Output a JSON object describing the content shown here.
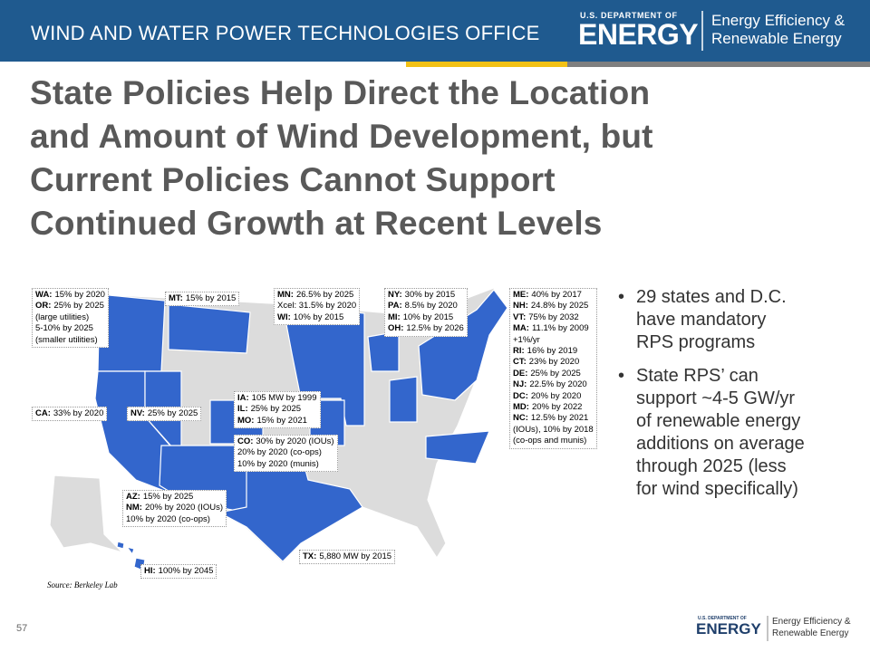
{
  "header": {
    "office": "WIND AND WATER POWER TECHNOLOGIES OFFICE",
    "logo": {
      "dept": "U.S. DEPARTMENT OF",
      "energy": "ENERGY",
      "line1": "Energy Efficiency &",
      "line2": "Renewable Energy"
    }
  },
  "title": [
    "State Policies Help Direct the Location",
    "and Amount of Wind Development, but",
    "Current Policies Cannot Support",
    "Continued Growth at Recent Levels"
  ],
  "map": {
    "callouts": [
      {
        "lines": [
          {
            "bold": "WA:",
            "text": "15% by 2020"
          },
          {
            "bold": "OR:",
            "text": "25% by 2025"
          },
          {
            "text": "(large utilities)"
          },
          {
            "text": "5-10% by 2025"
          },
          {
            "text": "(smaller utilities)"
          }
        ]
      },
      {
        "lines": [
          {
            "bold": "MT:",
            "text": "15% by 2015"
          }
        ]
      },
      {
        "lines": [
          {
            "bold": "MN:",
            "text": "26.5% by 2025"
          },
          {
            "text": "Xcel: 31.5% by 2020"
          },
          {
            "bold": "WI:",
            "text": "10% by 2015"
          }
        ]
      },
      {
        "lines": [
          {
            "bold": "NY:",
            "text": "30% by 2015"
          },
          {
            "bold": "PA:",
            "text": "8.5% by 2020"
          },
          {
            "bold": "MI:",
            "text": "10% by 2015"
          },
          {
            "bold": "OH:",
            "text": "12.5% by 2026"
          }
        ]
      },
      {
        "lines": [
          {
            "bold": "ME:",
            "text": "40% by 2017"
          },
          {
            "bold": "NH:",
            "text": "24.8% by 2025"
          },
          {
            "bold": "VT:",
            "text": "75% by 2032"
          },
          {
            "bold": "MA:",
            "text": "11.1% by 2009"
          },
          {
            "text": "+1%/yr"
          },
          {
            "bold": "RI:",
            "text": "16% by 2019"
          },
          {
            "bold": "CT:",
            "text": "23% by 2020"
          },
          {
            "bold": "DE:",
            "text": "25% by 2025"
          },
          {
            "bold": "NJ:",
            "text": "22.5% by 2020"
          },
          {
            "bold": "DC:",
            "text": "20% by 2020"
          },
          {
            "bold": "MD:",
            "text": "20% by 2022"
          },
          {
            "bold": "NC:",
            "text": "12.5% by 2021"
          },
          {
            "text": "(IOUs), 10% by 2018"
          },
          {
            "text": "(co-ops and munis)"
          }
        ]
      },
      {
        "lines": [
          {
            "bold": "CA:",
            "text": "33% by 2020"
          }
        ]
      },
      {
        "lines": [
          {
            "bold": "NV:",
            "text": "25% by 2025"
          }
        ]
      },
      {
        "lines": [
          {
            "bold": "IA:",
            "text": "105 MW by 1999"
          },
          {
            "bold": "IL:",
            "text": "25% by 2025"
          },
          {
            "bold": "MO:",
            "text": "15% by 2021"
          }
        ]
      },
      {
        "lines": [
          {
            "bold": "CO:",
            "text": "30% by 2020 (IOUs)"
          },
          {
            "text": "20% by 2020 (co-ops)"
          },
          {
            "text": "10% by 2020 (munis)"
          }
        ]
      },
      {
        "lines": [
          {
            "bold": "AZ:",
            "text": "15% by 2025"
          },
          {
            "bold": "NM:",
            "text": "20% by 2020 (IOUs)"
          },
          {
            "text": "10% by 2020 (co-ops)"
          }
        ]
      },
      {
        "lines": [
          {
            "bold": "TX:",
            "text": "5,880 MW by 2015"
          }
        ]
      },
      {
        "lines": [
          {
            "bold": "HI:",
            "text": "100% by 2045"
          }
        ]
      }
    ],
    "source": "Source: Berkeley Lab"
  },
  "bullets": [
    [
      "29 states and D.C.",
      "have mandatory",
      "RPS programs"
    ],
    [
      "State RPS’ can",
      "support ~4-5 GW/yr",
      "of renewable energy",
      "additions on average",
      "through 2025 (less",
      "for wind specifically)"
    ]
  ],
  "footer": {
    "page": "57",
    "logo": {
      "dept": "U.S. DEPARTMENT OF",
      "energy": "ENERGY",
      "line1": "Energy Efficiency &",
      "line2": "Renewable Energy"
    }
  }
}
